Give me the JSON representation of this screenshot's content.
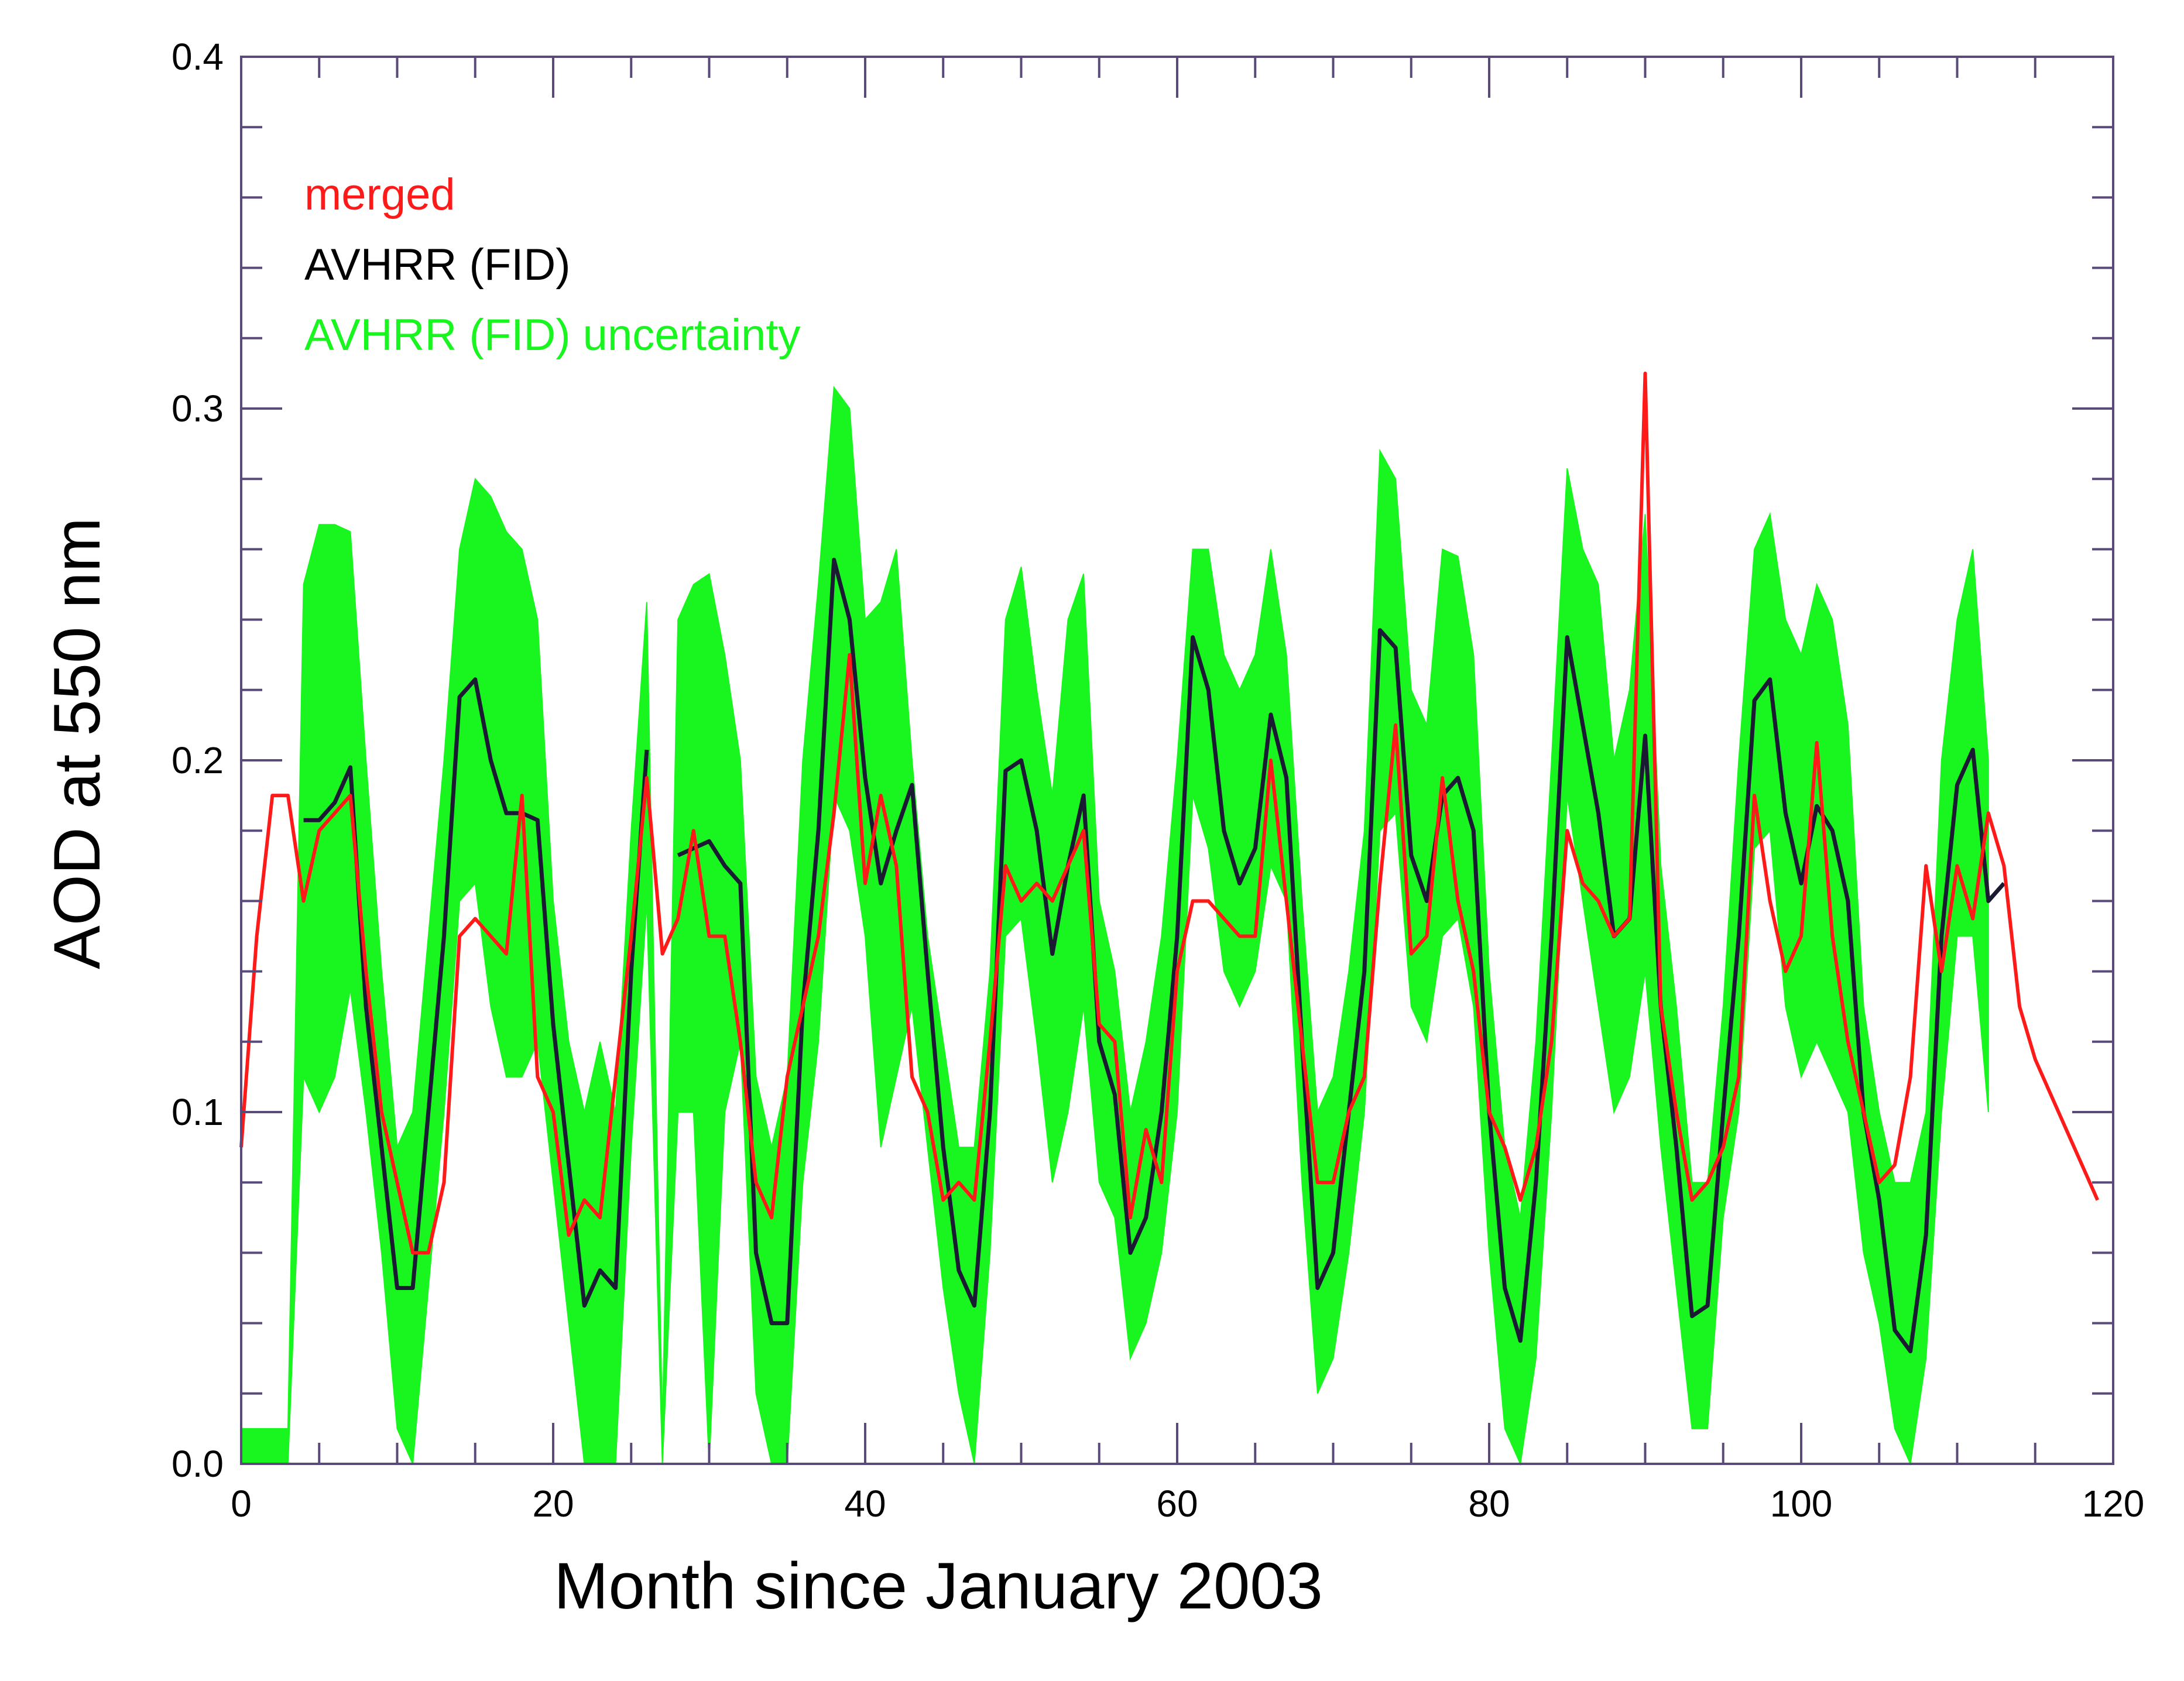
{
  "chart_data": {
    "type": "line",
    "title": "",
    "xlabel": "Month since January 2003",
    "ylabel": "AOD at 550 nm",
    "xlim": [
      0,
      120
    ],
    "ylim": [
      0,
      0.4
    ],
    "xticks": [
      0,
      20,
      40,
      60,
      80,
      100,
      120
    ],
    "yticks": [
      0.0,
      0.1,
      0.2,
      0.3,
      0.4
    ],
    "xtick_labels": [
      "0",
      "20",
      "40",
      "60",
      "80",
      "100",
      "120"
    ],
    "ytick_labels": [
      "0.0",
      "0.1",
      "0.2",
      "0.3",
      "0.4"
    ],
    "legend_position": "top-left",
    "colors": {
      "merged": "#ff1a1a",
      "avhrr": "#1a1a33",
      "band": "#19f51e",
      "axis": "#5a4a7a"
    },
    "series": [
      {
        "name": "merged",
        "color": "#ff1a1a",
        "x": [
          0,
          1,
          2,
          3,
          4,
          5,
          6,
          7,
          8,
          9,
          10,
          11,
          12,
          13,
          14,
          15,
          16,
          17,
          18,
          19,
          20,
          21,
          22,
          23,
          24,
          25,
          26,
          27,
          28,
          29,
          30,
          31,
          32,
          33,
          34,
          35,
          36,
          37,
          38,
          39,
          40,
          41,
          42,
          43,
          44,
          45,
          46,
          47,
          48,
          49,
          50,
          51,
          52,
          53,
          54,
          55,
          56,
          57,
          58,
          59,
          60,
          61,
          62,
          63,
          64,
          65,
          66,
          67,
          68,
          69,
          70,
          71,
          72,
          73,
          74,
          75,
          76,
          77,
          78,
          79,
          80,
          81,
          82,
          83,
          84,
          85,
          86,
          87,
          88,
          89,
          90,
          91,
          92,
          93,
          94,
          95,
          96,
          97,
          98,
          99,
          100,
          101,
          102,
          103,
          104,
          105,
          106,
          107,
          108,
          109,
          110,
          111,
          112,
          113,
          114,
          115,
          116,
          117,
          118,
          119
        ],
        "values": [
          0.09,
          0.15,
          0.19,
          0.19,
          0.16,
          0.18,
          0.185,
          0.19,
          0.14,
          0.1,
          0.08,
          0.06,
          0.06,
          0.08,
          0.15,
          0.155,
          0.15,
          0.145,
          0.19,
          0.11,
          0.1,
          0.065,
          0.075,
          0.07,
          0.11,
          0.15,
          0.195,
          0.145,
          0.155,
          0.18,
          0.15,
          0.15,
          0.12,
          0.08,
          0.07,
          0.11,
          0.13,
          0.15,
          0.185,
          0.23,
          0.165,
          0.19,
          0.17,
          0.11,
          0.1,
          0.075,
          0.08,
          0.075,
          0.12,
          0.17,
          0.16,
          0.165,
          0.16,
          0.17,
          0.18,
          0.125,
          0.12,
          0.07,
          0.095,
          0.08,
          0.14,
          0.16,
          0.16,
          0.155,
          0.15,
          0.15,
          0.2,
          0.16,
          0.12,
          0.08,
          0.08,
          0.1,
          0.11,
          0.165,
          0.21,
          0.145,
          0.15,
          0.195,
          0.16,
          0.14,
          0.1,
          0.09,
          0.075,
          0.09,
          0.12,
          0.18,
          0.165,
          0.16,
          0.15,
          0.155,
          0.31,
          0.13,
          0.1,
          0.075,
          0.08,
          0.09,
          0.11,
          0.19,
          0.16,
          0.14,
          0.15,
          0.205,
          0.15,
          0.12,
          0.1,
          0.08,
          0.085,
          0.11,
          0.17,
          0.14,
          0.17,
          0.155,
          0.185,
          0.17,
          0.13,
          0.115,
          0.105,
          0.095,
          0.085,
          0.075
        ]
      },
      {
        "name": "AVHRR (FID)",
        "color": "#1a1a33",
        "x": [
          4,
          5,
          6,
          7,
          8,
          9,
          10,
          11,
          12,
          13,
          14,
          15,
          16,
          17,
          18,
          19,
          20,
          21,
          22,
          23,
          24,
          25,
          26,
          null,
          28,
          29,
          30,
          31,
          32,
          33,
          34,
          35,
          36,
          37,
          38,
          39,
          40,
          41,
          42,
          43,
          44,
          45,
          46,
          47,
          48,
          49,
          50,
          51,
          52,
          53,
          54,
          55,
          56,
          57,
          58,
          59,
          60,
          61,
          62,
          63,
          64,
          65,
          66,
          67,
          68,
          69,
          70,
          71,
          72,
          73,
          74,
          75,
          76,
          77,
          78,
          79,
          80,
          81,
          82,
          83,
          84,
          85,
          86,
          87,
          88,
          89,
          90,
          91,
          92,
          93,
          94,
          95,
          96,
          97,
          98,
          99,
          100,
          101,
          102,
          103,
          104,
          105,
          106,
          107,
          108,
          109,
          110,
          111,
          112,
          113
        ],
        "values": [
          0.183,
          0.183,
          0.188,
          0.198,
          0.13,
          0.09,
          0.05,
          0.05,
          0.1,
          0.15,
          0.218,
          0.223,
          0.2,
          0.185,
          0.185,
          0.183,
          0.125,
          0.085,
          0.045,
          0.055,
          0.05,
          0.14,
          0.203,
          null,
          0.173,
          0.175,
          0.177,
          0.17,
          0.165,
          0.06,
          0.04,
          0.04,
          0.13,
          0.18,
          0.257,
          0.24,
          0.195,
          0.165,
          0.18,
          0.193,
          0.14,
          0.09,
          0.055,
          0.045,
          0.1,
          0.197,
          0.2,
          0.18,
          0.145,
          0.17,
          0.19,
          0.12,
          0.105,
          0.06,
          0.07,
          0.1,
          0.15,
          0.235,
          0.22,
          0.18,
          0.165,
          0.175,
          0.213,
          0.195,
          0.12,
          0.05,
          0.06,
          0.1,
          0.14,
          0.237,
          0.232,
          0.173,
          0.16,
          0.19,
          0.195,
          0.18,
          0.1,
          0.05,
          0.035,
          0.08,
          0.15,
          0.235,
          0.21,
          0.185,
          0.15,
          0.155,
          0.207,
          0.13,
          0.09,
          0.042,
          0.045,
          0.1,
          0.15,
          0.217,
          0.223,
          0.185,
          0.165,
          0.187,
          0.18,
          0.16,
          0.1,
          0.075,
          0.038,
          0.032,
          0.065,
          0.15,
          0.193,
          0.203,
          0.16,
          0.165
        ]
      }
    ],
    "uncertainty_band": {
      "name": "AVHRR (FID) uncertainty",
      "color": "#19f51e",
      "x": [
        0,
        1,
        2,
        3,
        4,
        5,
        6,
        7,
        8,
        9,
        10,
        11,
        12,
        13,
        14,
        15,
        16,
        17,
        18,
        19,
        20,
        21,
        22,
        23,
        24,
        25,
        26,
        27,
        28,
        29,
        30,
        31,
        32,
        33,
        34,
        35,
        36,
        37,
        38,
        39,
        40,
        41,
        42,
        43,
        44,
        45,
        46,
        47,
        48,
        49,
        50,
        51,
        52,
        53,
        54,
        55,
        56,
        57,
        58,
        59,
        60,
        61,
        62,
        63,
        64,
        65,
        66,
        67,
        68,
        69,
        70,
        71,
        72,
        73,
        74,
        75,
        76,
        77,
        78,
        79,
        80,
        81,
        82,
        83,
        84,
        85,
        86,
        87,
        88,
        89,
        90,
        91,
        92,
        93,
        94,
        95,
        96,
        97,
        98,
        99,
        100,
        101,
        102,
        103,
        104,
        105,
        106,
        107,
        108,
        109,
        110,
        111,
        112
      ],
      "upper": [
        0.01,
        0.01,
        0.01,
        0.01,
        0.25,
        0.267,
        0.267,
        0.265,
        0.2,
        0.14,
        0.09,
        0.1,
        0.15,
        0.2,
        0.26,
        0.28,
        0.275,
        0.265,
        0.26,
        0.24,
        0.16,
        0.12,
        0.1,
        0.12,
        0.1,
        0.18,
        0.245,
        0.01,
        0.24,
        0.25,
        0.253,
        0.23,
        0.2,
        0.11,
        0.09,
        0.11,
        0.2,
        0.25,
        0.306,
        0.3,
        0.24,
        0.245,
        0.26,
        0.2,
        0.15,
        0.12,
        0.09,
        0.09,
        0.14,
        0.24,
        0.255,
        0.22,
        0.19,
        0.24,
        0.253,
        0.16,
        0.14,
        0.1,
        0.12,
        0.15,
        0.2,
        0.26,
        0.26,
        0.23,
        0.22,
        0.23,
        0.26,
        0.23,
        0.16,
        0.1,
        0.11,
        0.14,
        0.18,
        0.288,
        0.28,
        0.22,
        0.21,
        0.26,
        0.258,
        0.23,
        0.14,
        0.09,
        0.07,
        0.12,
        0.2,
        0.283,
        0.26,
        0.25,
        0.2,
        0.22,
        0.27,
        0.17,
        0.13,
        0.08,
        0.08,
        0.13,
        0.2,
        0.26,
        0.27,
        0.24,
        0.23,
        0.25,
        0.24,
        0.21,
        0.13,
        0.1,
        0.08,
        0.08,
        0.1,
        0.2,
        0.24,
        0.26,
        0.2
      ],
      "lower": [
        0,
        0,
        0,
        0,
        0.11,
        0.1,
        0.11,
        0.135,
        0.1,
        0.06,
        0.01,
        0,
        0.05,
        0.1,
        0.16,
        0.165,
        0.13,
        0.11,
        0.11,
        0.12,
        0.08,
        0.04,
        0,
        0,
        0,
        0.09,
        0.16,
        0,
        0.1,
        0.1,
        0,
        0.1,
        0.12,
        0.02,
        0,
        0,
        0.08,
        0.12,
        0.19,
        0.18,
        0.15,
        0.09,
        0.11,
        0.13,
        0.09,
        0.05,
        0.02,
        0,
        0.06,
        0.15,
        0.155,
        0.12,
        0.08,
        0.1,
        0.13,
        0.08,
        0.07,
        0.03,
        0.04,
        0.06,
        0.1,
        0.19,
        0.175,
        0.14,
        0.13,
        0.14,
        0.17,
        0.16,
        0.08,
        0.02,
        0.03,
        0.06,
        0.1,
        0.18,
        0.185,
        0.13,
        0.12,
        0.15,
        0.155,
        0.13,
        0.06,
        0.01,
        0,
        0.03,
        0.1,
        0.19,
        0.16,
        0.13,
        0.1,
        0.11,
        0.14,
        0.09,
        0.05,
        0.01,
        0.01,
        0.07,
        0.1,
        0.175,
        0.18,
        0.13,
        0.11,
        0.12,
        0.11,
        0.1,
        0.06,
        0.04,
        0.01,
        0,
        0.03,
        0.1,
        0.15,
        0.15,
        0.1
      ]
    },
    "legend": [
      {
        "label": "merged",
        "color": "#ff1a1a"
      },
      {
        "label": "AVHRR (FID)",
        "color": "#000000"
      },
      {
        "label": "AVHRR (FID) uncertainty",
        "color": "#19f51e"
      }
    ]
  }
}
